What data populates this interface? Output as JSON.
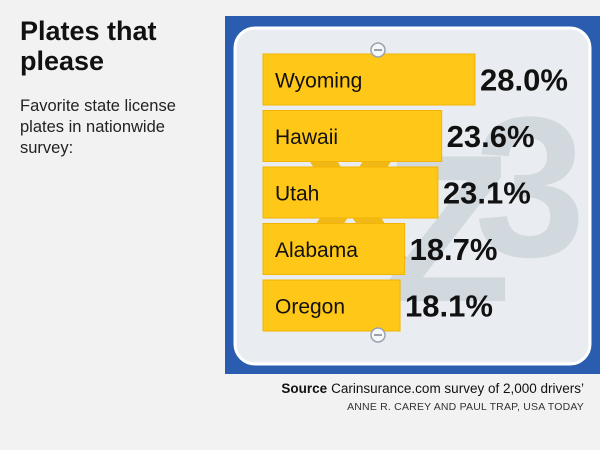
{
  "header": {
    "title": "Plates that please",
    "subtitle": "Favorite state license plates in nationwide survey:"
  },
  "plate_decoration": {
    "letters": [
      "X",
      "Z",
      "3"
    ]
  },
  "colors": {
    "frame": "#2a5db0",
    "plate": "#e9edf1",
    "bar": "#ffc717",
    "bar_shade": "#f2b400",
    "text": "#111111"
  },
  "footer": {
    "source_label": "Source",
    "source_text": "Carinsurance.com survey of 2,000 drivers’",
    "credit": "ANNE R. CAREY AND PAUL TRAP, USA TODAY"
  },
  "chart_data": {
    "type": "bar",
    "orientation": "horizontal",
    "title": "Plates that please",
    "subtitle": "Favorite state license plates in nationwide survey:",
    "categories": [
      "Wyoming",
      "Hawaii",
      "Utah",
      "Alabama",
      "Oregon"
    ],
    "values": [
      28.0,
      23.6,
      23.1,
      18.7,
      18.1
    ],
    "value_labels": [
      "28.0%",
      "23.6%",
      "23.1%",
      "18.7%",
      "18.1%"
    ],
    "unit": "%",
    "xlabel": "",
    "ylabel": "",
    "grid": false,
    "legend": "none"
  }
}
